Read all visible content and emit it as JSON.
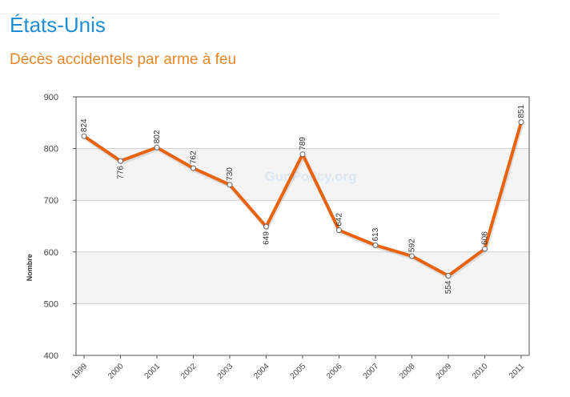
{
  "header": {
    "country": "États-Unis",
    "subtitle": "Décès accidentels par arme à feu"
  },
  "chart_data": {
    "type": "line",
    "x": [
      "1999",
      "2000",
      "2001",
      "2002",
      "2003",
      "2004",
      "2005",
      "2006",
      "2007",
      "2008",
      "2009",
      "2010",
      "2011"
    ],
    "values": [
      824,
      776,
      802,
      762,
      730,
      649,
      789,
      642,
      613,
      592,
      554,
      606,
      851
    ],
    "labels": [
      "824",
      "776",
      "802",
      "762",
      "730",
      "649",
      "789",
      "642",
      "613",
      "592",
      "554",
      "606",
      "851"
    ],
    "ylabel": "Nombre",
    "ylim": [
      400,
      900
    ],
    "yticks": [
      "400",
      "500",
      "600",
      "700",
      "800",
      "900"
    ],
    "watermark": "GunPolicy.org",
    "grid": true,
    "line_color": "#e8620f",
    "band_color": "#f4f4f4"
  }
}
